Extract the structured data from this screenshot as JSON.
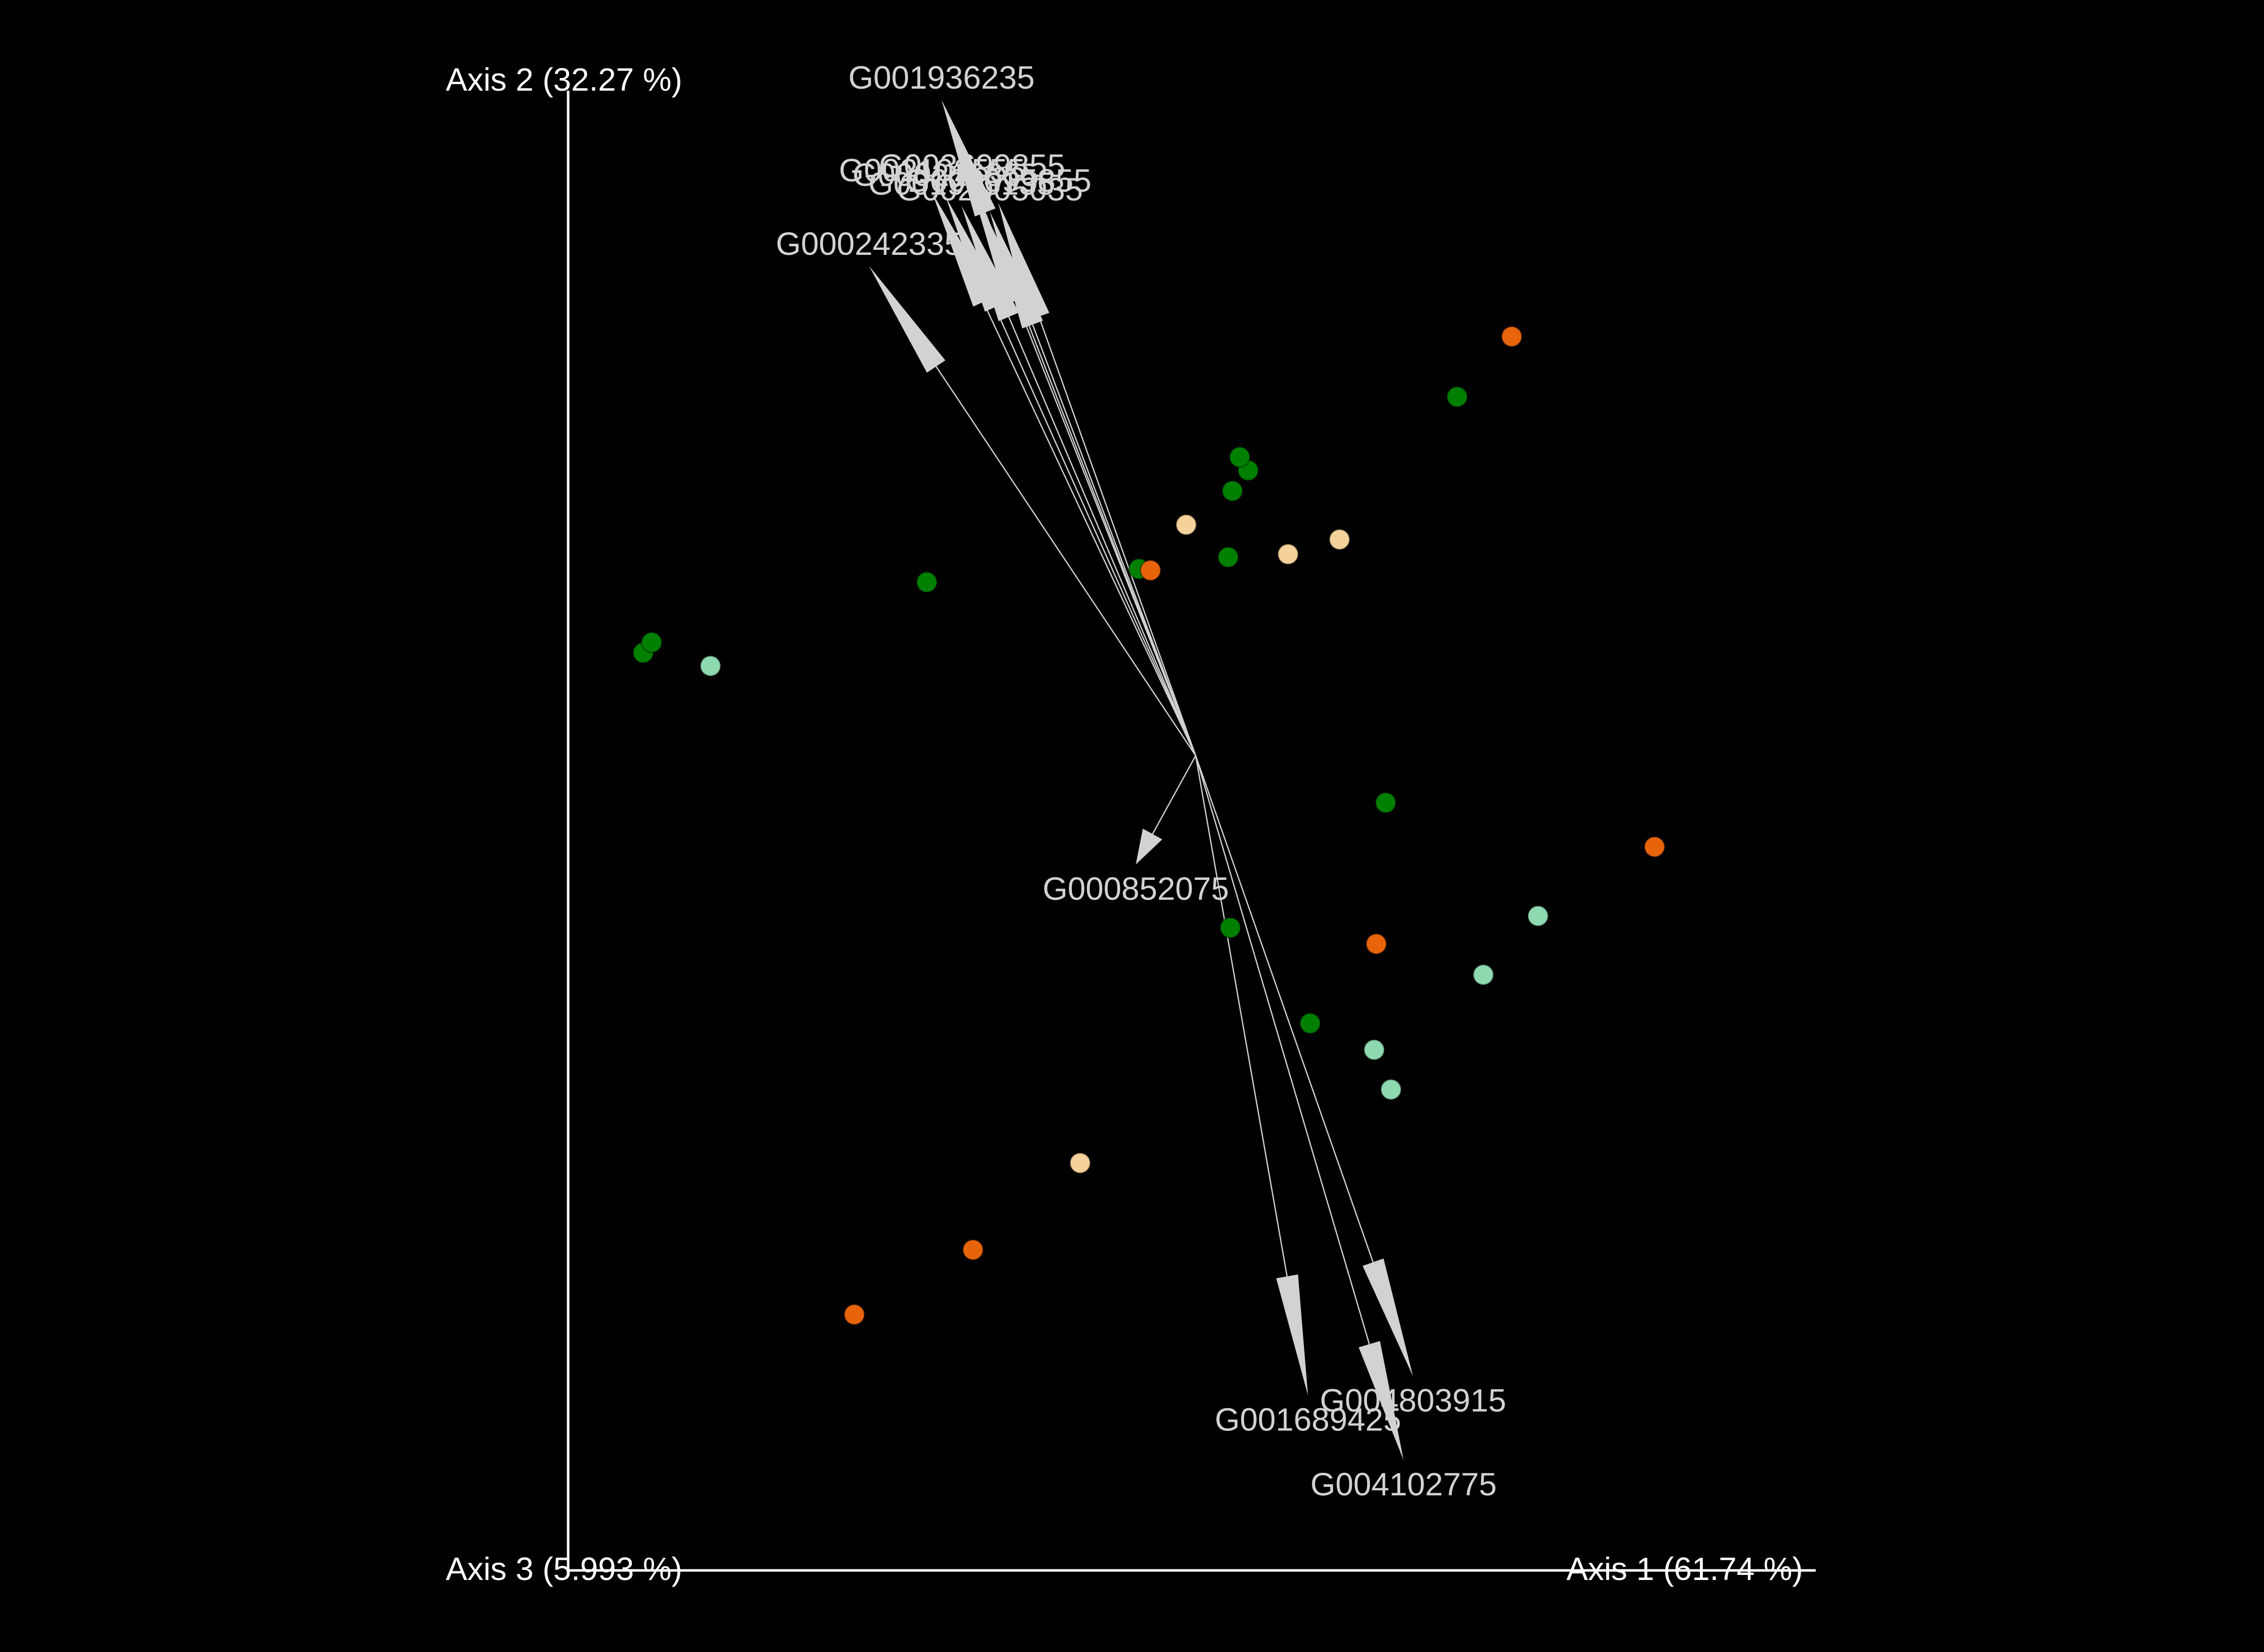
{
  "chart_data": {
    "type": "scatter",
    "subtype": "3d-pcoa-biplot",
    "background": "#000000",
    "axes": {
      "x": {
        "label": "Axis 1 (61.74 %)"
      },
      "y": {
        "label": "Axis 2 (32.27 %)"
      },
      "z": {
        "label": "Axis 3 (5.993 %)"
      }
    },
    "xlim": [
      0,
      1000
    ],
    "ylim": [
      0,
      1000
    ],
    "grid": false,
    "legend": "none",
    "series": [
      {
        "color": "#008000",
        "points": [
          {
            "x": 37,
            "y": 587
          },
          {
            "x": 45,
            "y": 594
          },
          {
            "x": 307,
            "y": 635
          },
          {
            "x": 509,
            "y": 644
          },
          {
            "x": 598,
            "y": 697
          },
          {
            "x": 594,
            "y": 652
          },
          {
            "x": 613,
            "y": 711
          },
          {
            "x": 605,
            "y": 720
          },
          {
            "x": 812,
            "y": 761
          },
          {
            "x": 744,
            "y": 485
          },
          {
            "x": 596,
            "y": 400
          },
          {
            "x": 672,
            "y": 335
          }
        ]
      },
      {
        "color": "#e8640a",
        "points": [
          {
            "x": 520,
            "y": 643
          },
          {
            "x": 864,
            "y": 802
          },
          {
            "x": 1000,
            "y": 455
          },
          {
            "x": 735,
            "y": 389
          },
          {
            "x": 351,
            "y": 181
          },
          {
            "x": 238,
            "y": 137
          }
        ]
      },
      {
        "color": "#f5d29b",
        "points": [
          {
            "x": 554,
            "y": 674
          },
          {
            "x": 651,
            "y": 654
          },
          {
            "x": 700,
            "y": 664
          },
          {
            "x": 453,
            "y": 240
          }
        ]
      },
      {
        "color": "#8fd9b0",
        "points": [
          {
            "x": 101,
            "y": 578
          },
          {
            "x": 889,
            "y": 408
          },
          {
            "x": 837,
            "y": 368
          },
          {
            "x": 733,
            "y": 317
          },
          {
            "x": 749,
            "y": 290
          }
        ]
      }
    ],
    "biplot_arrows": {
      "color": "#d2d2d2",
      "origin": {
        "x": 563,
        "y": 517
      },
      "vectors": [
        {
          "label": "G001936235",
          "x": 321,
          "y": 963
        },
        {
          "label": "G000242335",
          "x": 252,
          "y": 850
        },
        {
          "label": "G000852075",
          "x": 506,
          "y": 443
        },
        {
          "label": "G001689425",
          "x": 670,
          "y": 82
        },
        {
          "label": "G004803915",
          "x": 770,
          "y": 95
        },
        {
          "label": "G004102775",
          "x": 761,
          "y": 38
        },
        {
          "label": "G002102555",
          "x": 312,
          "y": 900
        },
        {
          "label": "G000216855",
          "x": 325,
          "y": 897
        },
        {
          "label": "G003699855",
          "x": 350,
          "y": 903
        },
        {
          "label": "G002005035",
          "x": 367,
          "y": 887
        },
        {
          "label": "G001905135",
          "x": 340,
          "y": 891
        },
        {
          "label": "G002095855",
          "x": 375,
          "y": 893
        }
      ]
    }
  }
}
